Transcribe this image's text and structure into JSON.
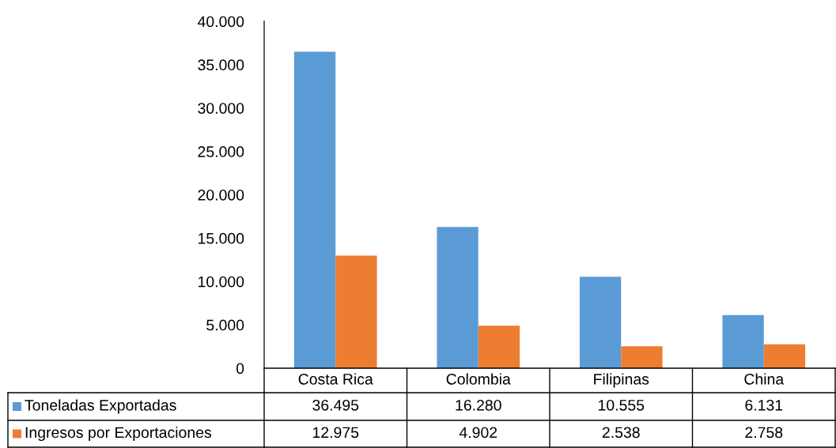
{
  "chart_data": {
    "type": "bar",
    "categories": [
      "Costa Rica",
      "Colombia",
      "Filipinas",
      "China"
    ],
    "series": [
      {
        "name": "Toneladas Exportadas",
        "color": "#5b9bd5",
        "values": [
          36495,
          16280,
          10555,
          6131
        ],
        "value_labels": [
          "36.495",
          "16.280",
          "10.555",
          "6.131"
        ]
      },
      {
        "name": "Ingresos por Exportaciones",
        "color": "#ed7d31",
        "values": [
          12975,
          4902,
          2538,
          2758
        ],
        "value_labels": [
          "12.975",
          "4.902",
          "2.538",
          "2.758"
        ]
      }
    ],
    "ylim": [
      0,
      40000
    ],
    "yticks": [
      0,
      {
        "value": 5000,
        "label": "5.000"
      },
      {
        "value": 10000,
        "label": "10.000"
      },
      {
        "value": 15000,
        "label": "15.000"
      },
      {
        "value": 20000,
        "label": "20.000"
      },
      {
        "value": 25000,
        "label": "25.000"
      },
      {
        "value": 30000,
        "label": "30.000"
      },
      {
        "value": 35000,
        "label": "35.000"
      },
      {
        "value": 40000,
        "label": "40.000"
      }
    ],
    "grid": false,
    "legend": "bottom left"
  }
}
